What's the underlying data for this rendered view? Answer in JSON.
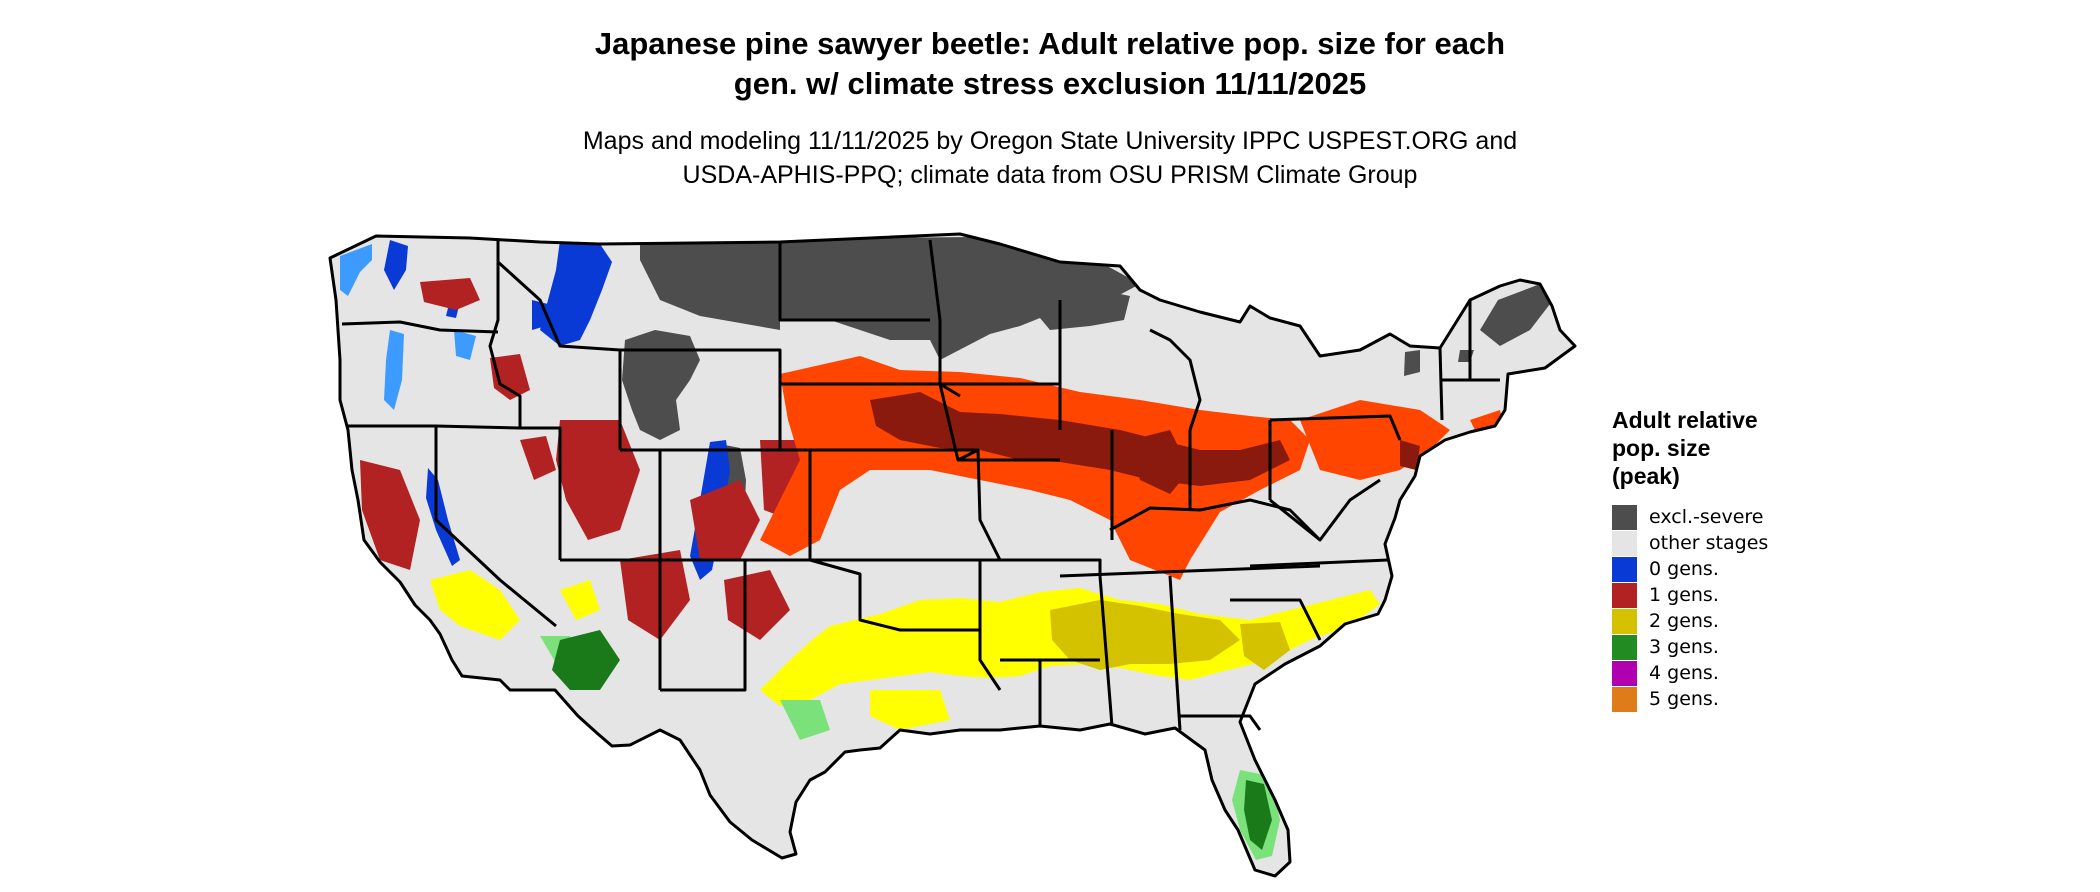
{
  "header": {
    "title_lines": [
      "Japanese pine sawyer beetle: Adult relative pop. size for each",
      "gen. w/ climate stress exclusion 11/11/2025"
    ],
    "subtitle_lines": [
      "Maps and modeling 11/11/2025 by Oregon State University IPPC USPEST.ORG and",
      "USDA-APHIS-PPQ; climate data from OSU PRISM Climate Group"
    ]
  },
  "legend": {
    "title_lines": [
      "Adult relative",
      "pop. size",
      "(peak)"
    ],
    "items": [
      {
        "label": "excl.-severe",
        "color": "#4d4d4d"
      },
      {
        "label": "other stages",
        "color": "#e5e5e5"
      },
      {
        "label": "0 gens.",
        "color": "#0a3ad6"
      },
      {
        "label": "1 gens.",
        "color": "#b22222"
      },
      {
        "label": "2 gens.",
        "color": "#d4c200"
      },
      {
        "label": "3 gens.",
        "color": "#228b22"
      },
      {
        "label": "4 gens.",
        "color": "#b000b0"
      },
      {
        "label": "5 gens.",
        "color": "#e07b1a"
      }
    ]
  },
  "map_colors": {
    "excluded": "#4d4d4d",
    "other": "#e5e5e5",
    "zero_gen": "#0a3ad6",
    "zero_gen_light": "#3d9bff",
    "one_gen_dark": "#8b1a0e",
    "one_gen": "#b22222",
    "one_gen_bright": "#ff4500",
    "two_gen": "#d4c200",
    "two_gen_bright": "#ffff00",
    "three_gen": "#1a7a1a",
    "three_gen_light": "#7be27b",
    "border": "#000000"
  }
}
